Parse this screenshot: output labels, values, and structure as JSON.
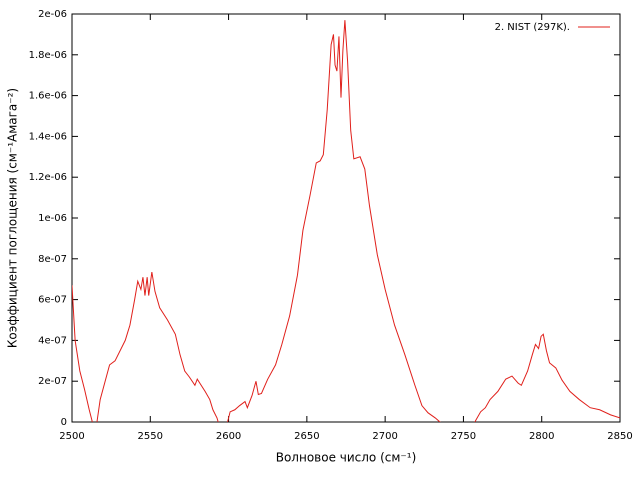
{
  "chart_data": {
    "type": "line",
    "xlabel": "Волновое число (см⁻¹)",
    "ylabel": "Коэффициент поглощения (см⁻¹Амага⁻²)",
    "xlim": [
      2500,
      2850
    ],
    "xticks": [
      2500,
      2550,
      2600,
      2650,
      2700,
      2750,
      2800,
      2850
    ],
    "ylim": [
      0,
      2e-06
    ],
    "yticks": [
      0,
      {
        "value": 2e-07,
        "label": "2e-07"
      },
      {
        "value": 4e-07,
        "label": "4e-07"
      },
      {
        "value": 6e-07,
        "label": "6e-07"
      },
      {
        "value": 8e-07,
        "label": "8e-07"
      },
      {
        "value": 1e-06,
        "label": "1e-06"
      },
      {
        "value": 1.2e-06,
        "label": "1.2e-06"
      },
      {
        "value": 1.4e-06,
        "label": "1.4e-06"
      },
      {
        "value": 1.6e-06,
        "label": "1.6e-06"
      },
      {
        "value": 1.8e-06,
        "label": "1.8e-06"
      },
      {
        "value": 2e-06,
        "label": "2e-06"
      }
    ],
    "legend": "upper right",
    "x": [
      2500,
      2502,
      2505,
      2508,
      2511,
      2513,
      2515,
      2518,
      2524,
      2527.5,
      2534,
      2537,
      2540,
      2542,
      2544,
      2545.3,
      2546.6,
      2548,
      2549,
      2551,
      2553,
      2556,
      2561,
      2566,
      2569,
      2572,
      2575,
      2578.5,
      2580,
      2585,
      2588,
      2590,
      2592.6,
      2594.5,
      2598,
      2601,
      2604,
      2607,
      2610.5,
      2612,
      2615,
      2617.5,
      2619,
      2621,
      2625,
      2630,
      2634,
      2639,
      2644,
      2647.5,
      2652,
      2656,
      2658.5,
      2660.5,
      2663,
      2665.5,
      2667,
      2668,
      2669.2,
      2670.5,
      2671.8,
      2673,
      2674.3,
      2676,
      2678,
      2680,
      2684,
      2687,
      2690,
      2695,
      2700,
      2706,
      2712.6,
      2719,
      2723.5,
      2727.4,
      2732,
      2735,
      2739,
      2754,
      2758,
      2761,
      2764,
      2767,
      2772,
      2777,
      2781,
      2785,
      2787,
      2791,
      2794,
      2796,
      2798,
      2799.6,
      2801,
      2803,
      2805,
      2809,
      2813,
      2818,
      2824,
      2831,
      2837,
      2844,
      2850
    ],
    "series": [
      {
        "name": "2. NIST (297K).",
        "color": "#e0201b",
        "values": [
          6.7e-07,
          4e-07,
          2.5e-07,
          1.6e-07,
          6e-08,
          0,
          -5e-08,
          1.1e-07,
          2.8e-07,
          3e-07,
          4e-07,
          4.75e-07,
          6e-07,
          6.9e-07,
          6.5e-07,
          7.1e-07,
          6.2e-07,
          7.1e-07,
          6.2e-07,
          7.35e-07,
          6.4e-07,
          5.6e-07,
          5e-07,
          4.3e-07,
          3.3e-07,
          2.5e-07,
          2.2e-07,
          1.8e-07,
          2.1e-07,
          1.5e-07,
          1.1e-07,
          6e-08,
          2e-08,
          -3e-08,
          -4e-08,
          5e-08,
          6e-08,
          8e-08,
          1e-07,
          7e-08,
          1.3e-07,
          2e-07,
          1.35e-07,
          1.4e-07,
          2.1e-07,
          2.8e-07,
          3.8e-07,
          5.2e-07,
          7.2e-07,
          9.4e-07,
          1.11e-06,
          1.27e-06,
          1.28e-06,
          1.31e-06,
          1.53e-06,
          1.85e-06,
          1.9e-06,
          1.75e-06,
          1.72e-06,
          1.89e-06,
          1.59e-06,
          1.82e-06,
          1.97e-06,
          1.77e-06,
          1.43e-06,
          1.29e-06,
          1.3e-06,
          1.24e-06,
          1.06e-06,
          8.2e-07,
          6.5e-07,
          4.75e-07,
          3.3e-07,
          1.8e-07,
          8e-08,
          4.5e-08,
          2e-08,
          0,
          -4e-08,
          -5e-08,
          1e-08,
          5e-08,
          7e-08,
          1.1e-07,
          1.5e-07,
          2.1e-07,
          2.25e-07,
          1.9e-07,
          1.8e-07,
          2.5e-07,
          3.3e-07,
          3.8e-07,
          3.6e-07,
          4.2e-07,
          4.3e-07,
          3.5e-07,
          2.9e-07,
          2.65e-07,
          2.05e-07,
          1.5e-07,
          1.1e-07,
          7e-08,
          6e-08,
          3.5e-08,
          2e-08
        ]
      }
    ]
  }
}
